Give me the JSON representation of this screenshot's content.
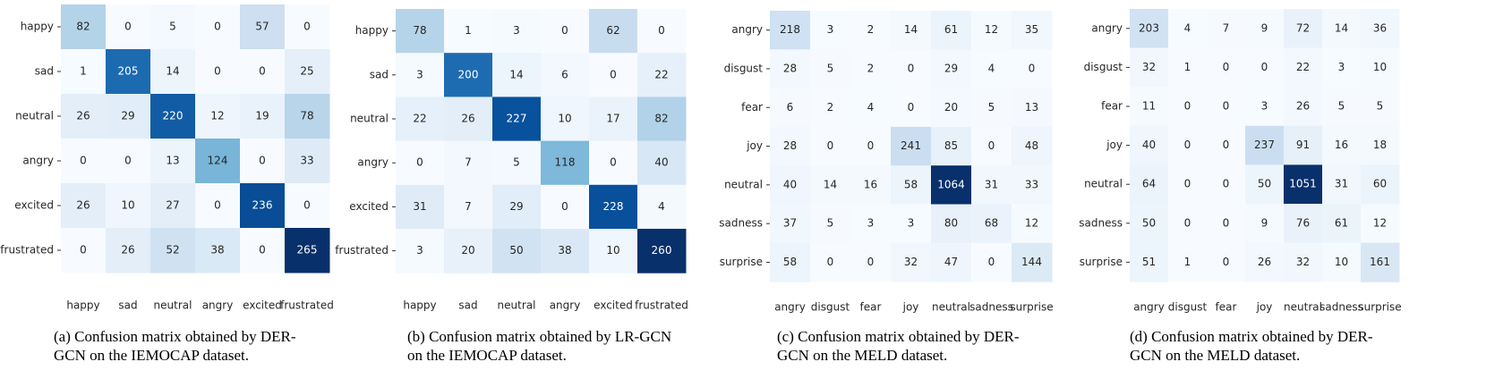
{
  "chart_data": [
    {
      "type": "heatmap",
      "colormap": "Blues",
      "x_categories": [
        "happy",
        "sad",
        "neutral",
        "angry",
        "excited",
        "frustrated"
      ],
      "y_categories": [
        "happy",
        "sad",
        "neutral",
        "angry",
        "excited",
        "frustrated"
      ],
      "values": [
        [
          82,
          0,
          5,
          0,
          57,
          0
        ],
        [
          1,
          205,
          14,
          0,
          0,
          25
        ],
        [
          26,
          29,
          220,
          12,
          19,
          78
        ],
        [
          0,
          0,
          13,
          124,
          0,
          33
        ],
        [
          26,
          10,
          27,
          0,
          236,
          0
        ],
        [
          0,
          26,
          52,
          38,
          0,
          265
        ]
      ],
      "caption": "(a) Confusion matrix obtained by DER-GCN on the IEMOCAP dataset."
    },
    {
      "type": "heatmap",
      "colormap": "Blues",
      "x_categories": [
        "happy",
        "sad",
        "neutral",
        "angry",
        "excited",
        "frustrated"
      ],
      "y_categories": [
        "happy",
        "sad",
        "neutral",
        "angry",
        "excited",
        "frustrated"
      ],
      "values": [
        [
          78,
          1,
          3,
          0,
          62,
          0
        ],
        [
          3,
          200,
          14,
          6,
          0,
          22
        ],
        [
          22,
          26,
          227,
          10,
          17,
          82
        ],
        [
          0,
          7,
          5,
          118,
          0,
          40
        ],
        [
          31,
          7,
          29,
          0,
          228,
          4
        ],
        [
          3,
          20,
          50,
          38,
          10,
          260
        ]
      ],
      "caption": "(b) Confusion matrix obtained by LR-GCN on the IEMOCAP dataset."
    },
    {
      "type": "heatmap",
      "colormap": "Blues",
      "x_categories": [
        "angry",
        "disgust",
        "fear",
        "joy",
        "neutral",
        "sadness",
        "surprise"
      ],
      "y_categories": [
        "angry",
        "disgust",
        "fear",
        "joy",
        "neutral",
        "sadness",
        "surprise"
      ],
      "values": [
        [
          218,
          3,
          2,
          14,
          61,
          12,
          35
        ],
        [
          28,
          5,
          2,
          0,
          29,
          4,
          0
        ],
        [
          6,
          2,
          4,
          0,
          20,
          5,
          13
        ],
        [
          28,
          0,
          0,
          241,
          85,
          0,
          48
        ],
        [
          40,
          14,
          16,
          58,
          1064,
          31,
          33
        ],
        [
          37,
          5,
          3,
          3,
          80,
          68,
          12
        ],
        [
          58,
          0,
          0,
          32,
          47,
          0,
          144
        ]
      ],
      "caption": "(c) Confusion matrix obtained by DER-GCN on the MELD dataset."
    },
    {
      "type": "heatmap",
      "colormap": "Blues",
      "x_categories": [
        "angry",
        "disgust",
        "fear",
        "joy",
        "neutral",
        "sadness",
        "surprise"
      ],
      "y_categories": [
        "angry",
        "disgust",
        "fear",
        "joy",
        "neutral",
        "sadness",
        "surprise"
      ],
      "values": [
        [
          203,
          4,
          7,
          9,
          72,
          14,
          36
        ],
        [
          32,
          1,
          0,
          0,
          22,
          3,
          10
        ],
        [
          11,
          0,
          0,
          3,
          26,
          5,
          5
        ],
        [
          40,
          0,
          0,
          237,
          91,
          16,
          18
        ],
        [
          64,
          0,
          0,
          50,
          1051,
          31,
          60
        ],
        [
          50,
          0,
          0,
          9,
          76,
          61,
          12
        ],
        [
          51,
          1,
          0,
          26,
          32,
          10,
          161
        ]
      ],
      "caption": "(d) Confusion matrix obtained by DER-GCN on the MELD dataset."
    }
  ]
}
